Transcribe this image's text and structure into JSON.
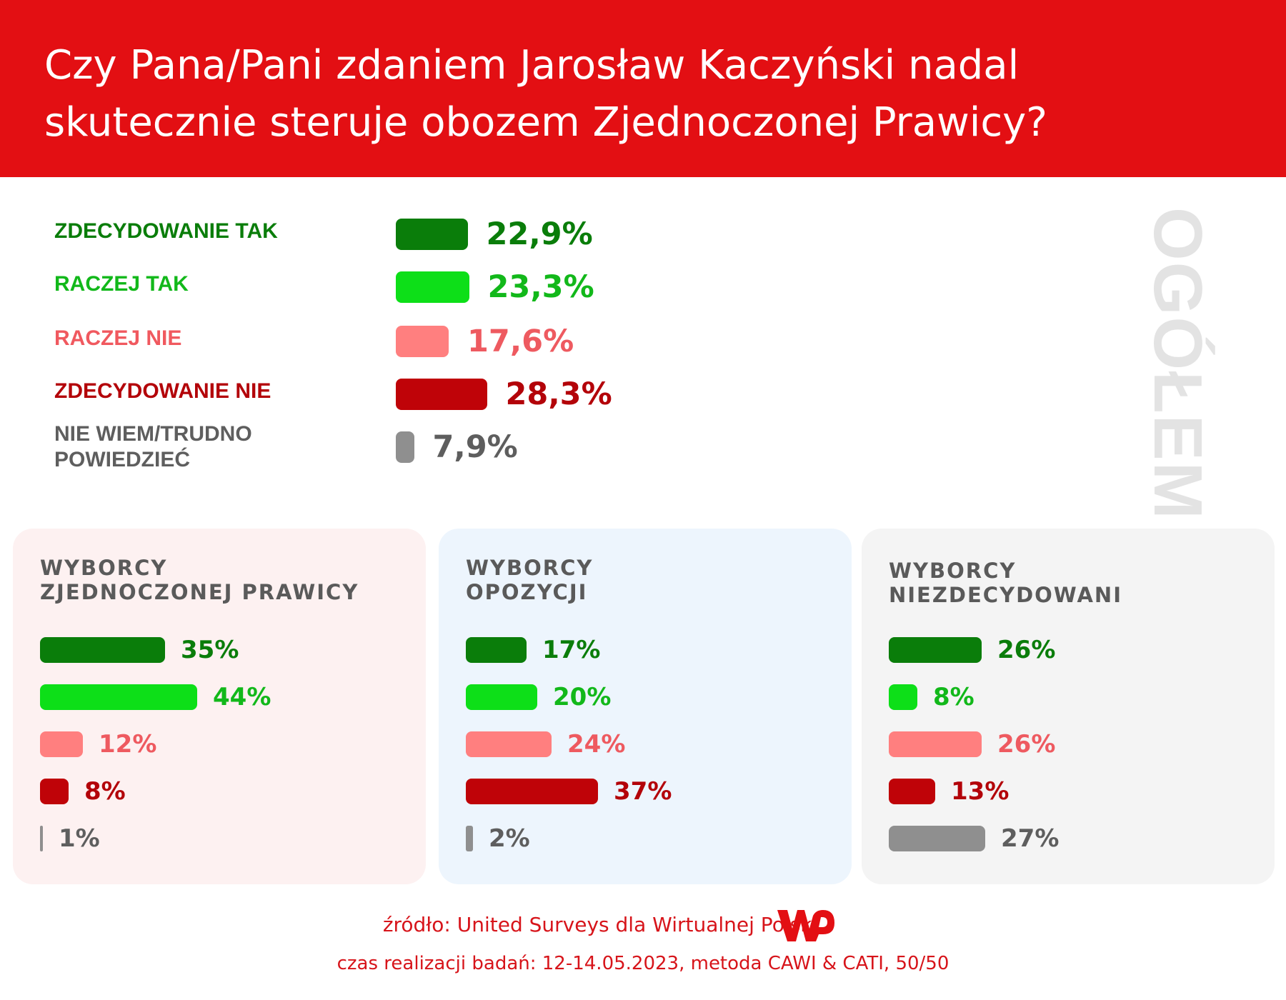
{
  "title_lines": [
    "Czy Pana/Pani zdaniem Jarosław Kaczyński nadal",
    "skutecznie steruje obozem Zjednoczonej Prawicy?"
  ],
  "side_label": "OGÓŁEM",
  "colors": {
    "header": "#e30f13",
    "zdecydowanie_tak": "#0a7d0a",
    "raczej_tak": "#0ddf18",
    "raczej_nie": "#ff7f7f",
    "zdecydowanie_nie": "#bf0308",
    "nie_wiem": "#8f8f8f"
  },
  "chart_data": [
    {
      "type": "bar",
      "group": "OGÓŁEM",
      "categories": [
        "ZDECYDOWANIE TAK",
        "RACZEJ TAK",
        "RACZEJ NIE",
        "ZDECYDOWANIE NIE",
        "NIE WIEM/TRUDNO POWIEDZIEĆ"
      ],
      "label_lines": [
        [
          "ZDECYDOWANIE TAK"
        ],
        [
          "RACZEJ TAK"
        ],
        [
          "RACZEJ NIE"
        ],
        [
          "ZDECYDOWANIE NIE"
        ],
        [
          "NIE WIEM/TRUDNO",
          "POWIEDZIEĆ"
        ]
      ],
      "values": [
        22.9,
        23.3,
        17.6,
        28.3,
        7.9
      ],
      "value_labels": [
        "22,9%",
        "23,3%",
        "17,6%",
        "28,3%",
        "7,9%"
      ]
    },
    {
      "type": "bar",
      "title_lines": [
        "WYBORCY",
        "ZJEDNOCZONEJ PRAWICY"
      ],
      "categories": [
        "ZDECYDOWANIE TAK",
        "RACZEJ TAK",
        "RACZEJ NIE",
        "ZDECYDOWANIE NIE",
        "NIE WIEM/TRUDNO POWIEDZIEĆ"
      ],
      "values": [
        35,
        44,
        12,
        8,
        1
      ],
      "value_labels": [
        "35%",
        "44%",
        "12%",
        "8%",
        "1%"
      ]
    },
    {
      "type": "bar",
      "title_lines": [
        "WYBORCY",
        "OPOZYCJI"
      ],
      "categories": [
        "ZDECYDOWANIE TAK",
        "RACZEJ TAK",
        "RACZEJ NIE",
        "ZDECYDOWANIE NIE",
        "NIE WIEM/TRUDNO POWIEDZIEĆ"
      ],
      "values": [
        17,
        20,
        24,
        37,
        2
      ],
      "value_labels": [
        "17%",
        "20%",
        "24%",
        "37%",
        "2%"
      ]
    },
    {
      "type": "bar",
      "title_lines": [
        "WYBORCY",
        "NIEZDECYDOWANI"
      ],
      "categories": [
        "ZDECYDOWANIE TAK",
        "RACZEJ TAK",
        "RACZEJ NIE",
        "ZDECYDOWANIE NIE",
        "NIE WIEM/TRUDNO POWIEDZIEĆ"
      ],
      "values": [
        26,
        8,
        26,
        13,
        27
      ],
      "value_labels": [
        "26%",
        "8%",
        "26%",
        "13%",
        "27%"
      ]
    }
  ],
  "panel_colors": [
    "#fdf1f1",
    "#edf5fd",
    "#f4f4f4"
  ],
  "footer": {
    "source": "źródło: United Surveys dla Wirtualnej Polski",
    "details": "czas realizacji badań: 12-14.05.2023, metoda CAWI & CATI, 50/50",
    "logo": "WP"
  }
}
